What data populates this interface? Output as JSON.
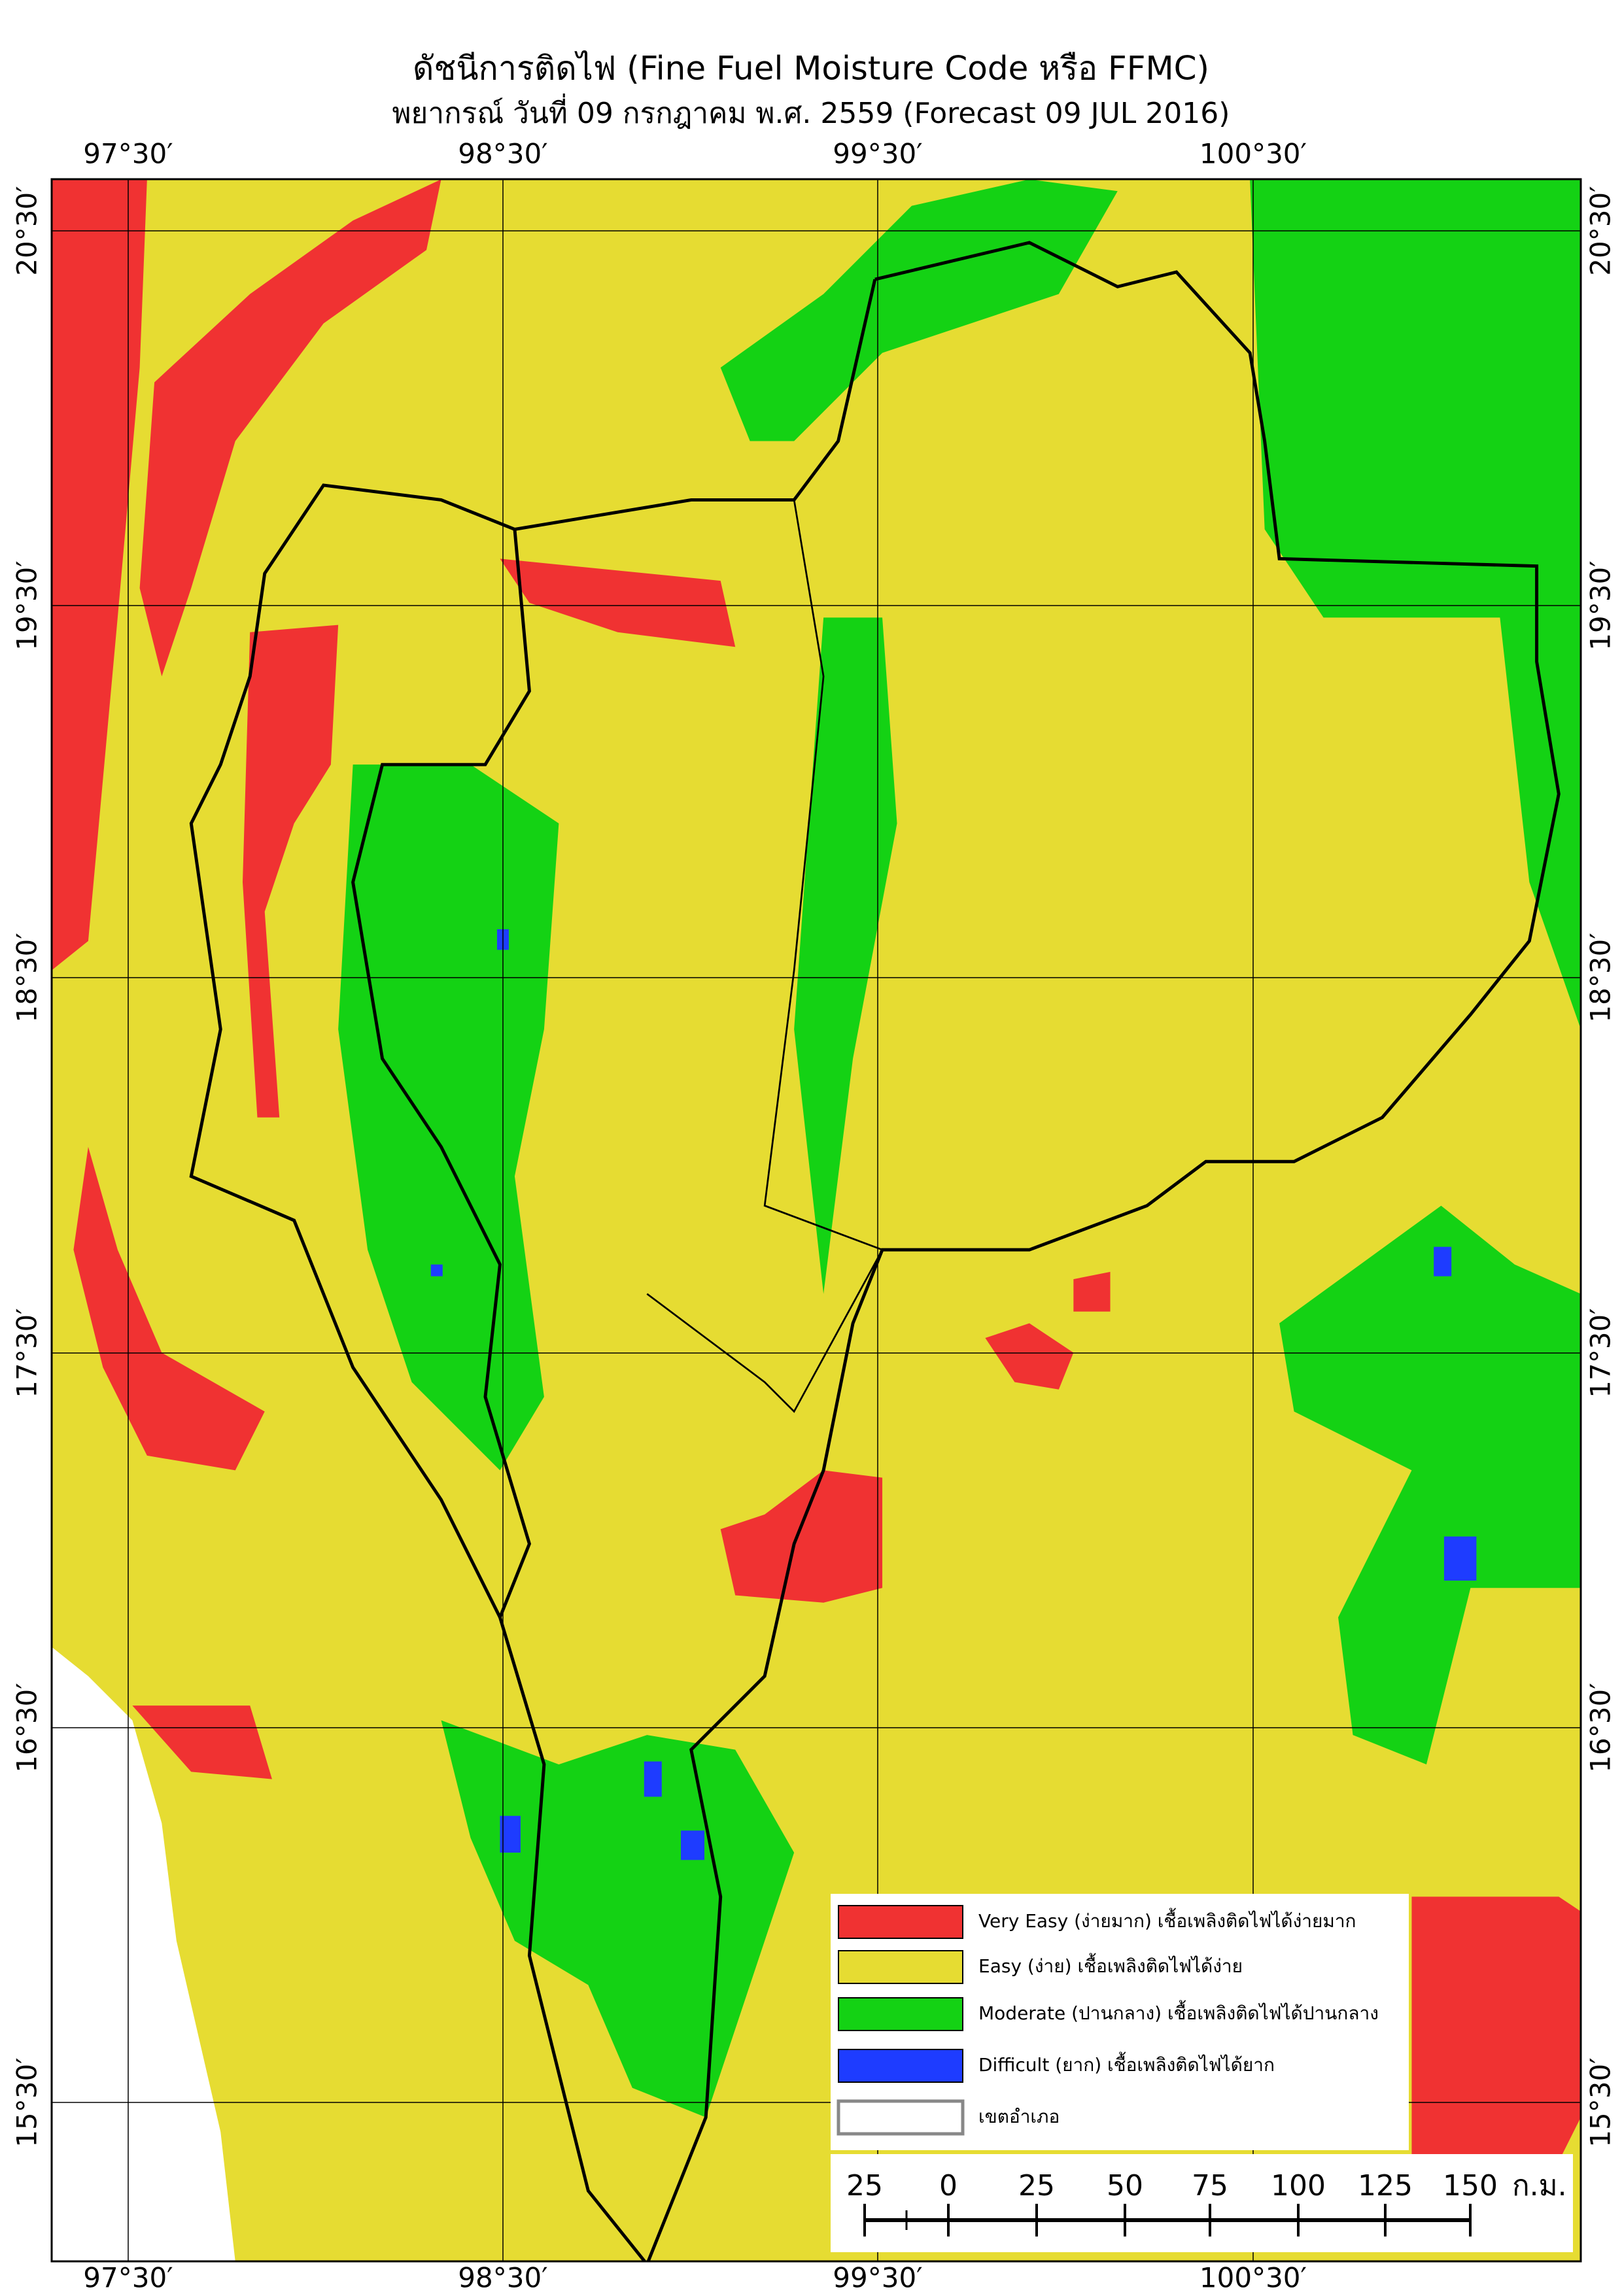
{
  "header": {
    "title": "ดัชนีการติดไฟ (Fine Fuel Moisture Code หรือ FFMC)",
    "subtitle": "พยากรณ์ วันที่ 09 กรกฎาคม พ.ศ. 2559 (Forecast 09 JUL 2016)"
  },
  "axes": {
    "longitudes": [
      "97°30′",
      "98°30′",
      "99°30′",
      "100°30′"
    ],
    "latitudes": [
      "20°30′",
      "19°30′",
      "18°30′",
      "17°30′",
      "16°30′",
      "15°30′"
    ]
  },
  "legend": {
    "items": [
      {
        "label": "Very Easy (ง่ายมาก) เชื้อเพลิงติดไฟได้ง่ายมาก",
        "color": "#f03232"
      },
      {
        "label": "Easy (ง่าย) เชื้อเพลิงติดไฟได้ง่าย",
        "color": "#e6dc32"
      },
      {
        "label": "Moderate (ปานกลาง) เชื้อเพลิงติดไฟได้ปานกลาง",
        "color": "#14d214"
      },
      {
        "label": "Difficult (ยาก) เชื้อเพลิงติดไฟได้ยาก",
        "color": "#1e3cff"
      },
      {
        "label": "เขตอำเภอ",
        "color": "#ffffff"
      }
    ]
  },
  "scale_bar": {
    "labels": [
      "25",
      "0",
      "25",
      "50",
      "75",
      "100",
      "125",
      "150"
    ],
    "unit": "ก.ม."
  }
}
